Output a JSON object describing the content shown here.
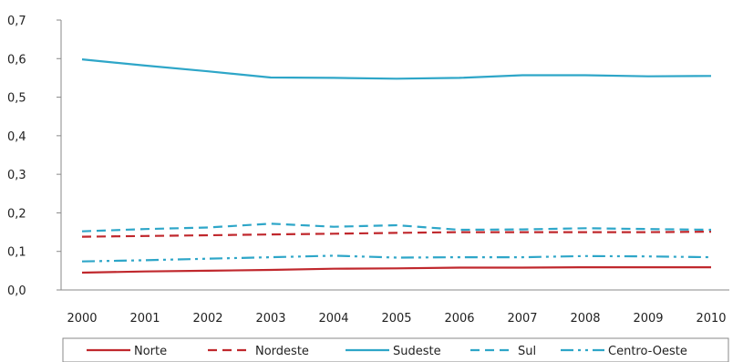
{
  "chart_data": {
    "type": "line",
    "title": "",
    "xlabel": "",
    "ylabel": "",
    "categories": [
      "2000",
      "2001",
      "2002",
      "2003",
      "2004",
      "2005",
      "2006",
      "2007",
      "2008",
      "2009",
      "2010"
    ],
    "ylim": [
      0,
      0.7
    ],
    "yticks": [
      0,
      0.1,
      0.2,
      0.3,
      0.4,
      0.5,
      0.6,
      0.7
    ],
    "ytick_labels": [
      "0,0",
      "0,1",
      "0,2",
      "0,3",
      "0,4",
      "0,5",
      "0,6",
      "0,7"
    ],
    "grid": false,
    "legend_position": "bottom",
    "series": [
      {
        "name": "Norte",
        "color": "#c0282d",
        "dash": "solid",
        "values": [
          0.045,
          0.048,
          0.05,
          0.052,
          0.055,
          0.056,
          0.058,
          0.058,
          0.059,
          0.059,
          0.059
        ]
      },
      {
        "name": "Nordeste",
        "color": "#c0282d",
        "dash": "dash",
        "values": [
          0.138,
          0.14,
          0.142,
          0.144,
          0.146,
          0.148,
          0.15,
          0.15,
          0.15,
          0.15,
          0.151
        ]
      },
      {
        "name": "Sudeste",
        "color": "#2ea6c8",
        "dash": "solid",
        "values": [
          0.598,
          0.582,
          0.567,
          0.551,
          0.55,
          0.548,
          0.55,
          0.557,
          0.557,
          0.554,
          0.555
        ]
      },
      {
        "name": "Sul",
        "color": "#2ea6c8",
        "dash": "dash",
        "values": [
          0.152,
          0.158,
          0.162,
          0.172,
          0.164,
          0.168,
          0.156,
          0.157,
          0.16,
          0.158,
          0.156
        ]
      },
      {
        "name": "Centro-Oeste",
        "color": "#2ea6c8",
        "dash": "dashdotdot",
        "values": [
          0.074,
          0.077,
          0.081,
          0.085,
          0.089,
          0.084,
          0.085,
          0.085,
          0.088,
          0.087,
          0.085
        ]
      }
    ]
  }
}
